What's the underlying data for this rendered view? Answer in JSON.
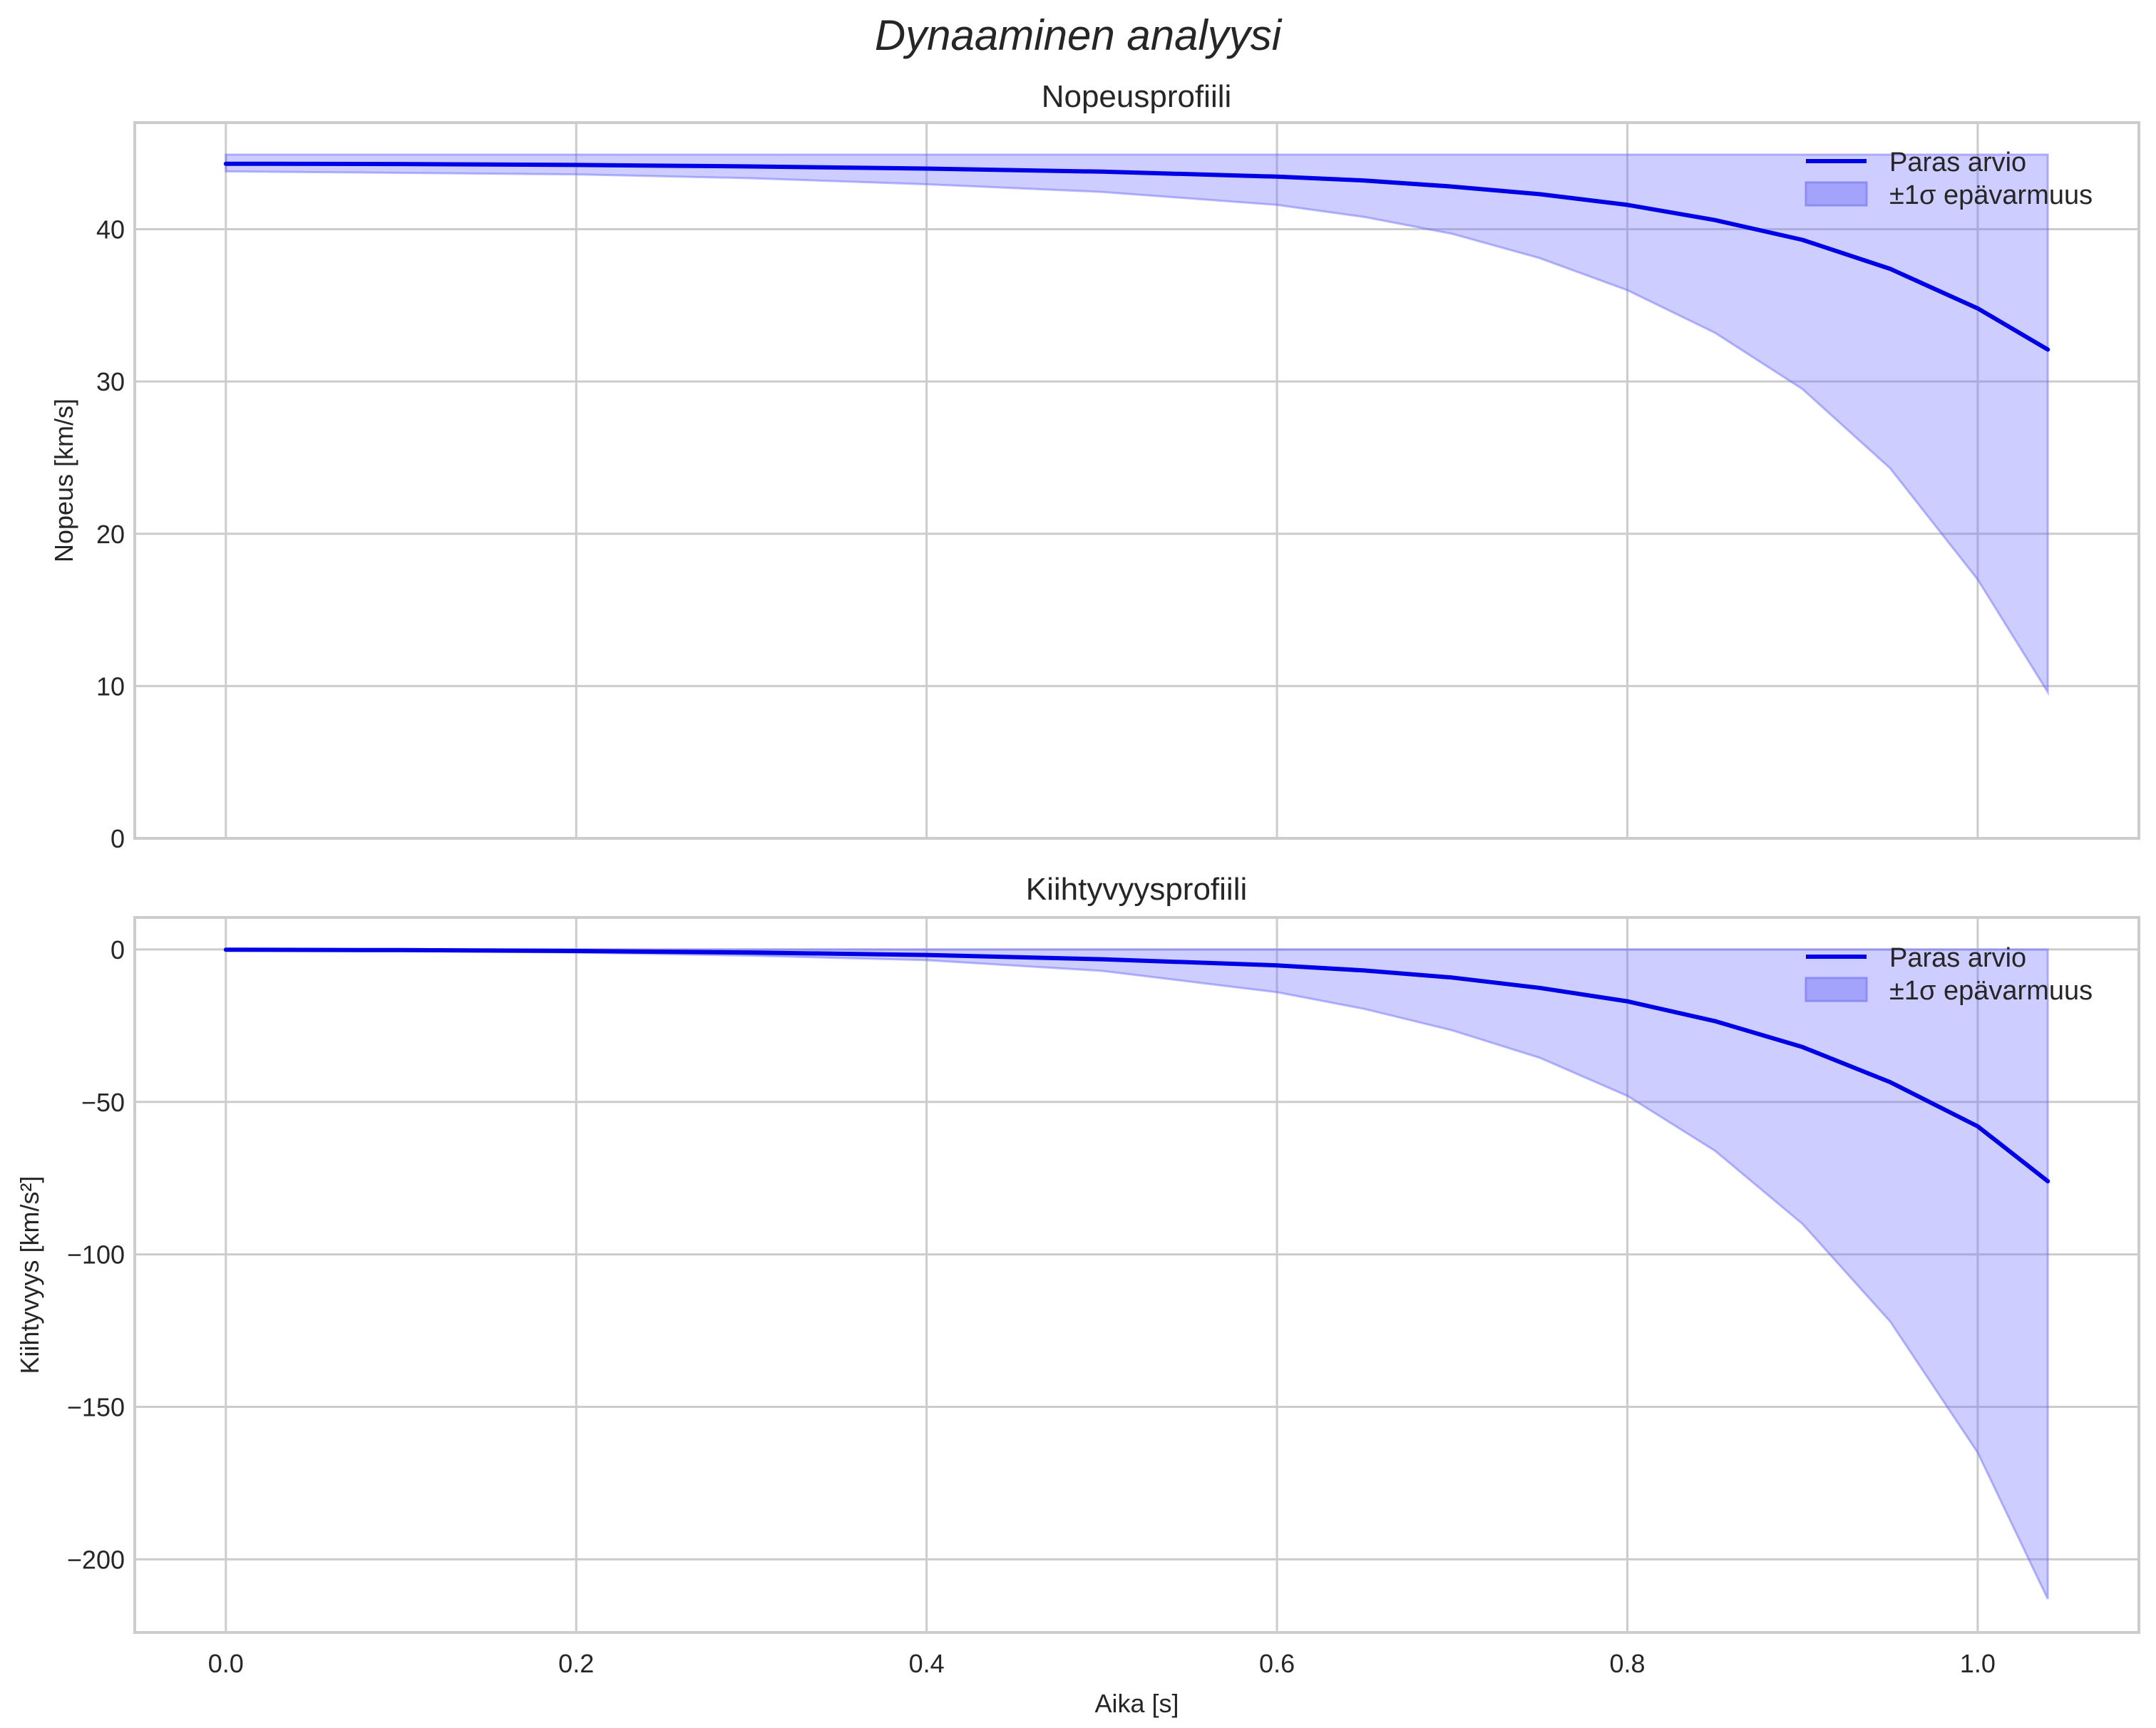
{
  "figure": {
    "title": "Dynaaminen analyysi"
  },
  "colors": {
    "line": "#0000e6",
    "band_fill": "#6666ff",
    "band_alpha": 0.33,
    "grid": "#cccccc",
    "spine": "#cccccc",
    "text": "#262626"
  },
  "chart_data": [
    {
      "type": "line",
      "title": "Nopeusprofiili",
      "xlabel": "",
      "ylabel": "Nopeus [km/s]",
      "xlim": [
        -0.052,
        1.092
      ],
      "ylim": [
        0,
        47
      ],
      "xticks": [
        0.0,
        0.2,
        0.4,
        0.6,
        0.8,
        1.0
      ],
      "xtick_labels": [
        "",
        "",
        "",
        "",
        "",
        ""
      ],
      "yticks": [
        0,
        10,
        20,
        30,
        40
      ],
      "ytick_labels": [
        "0",
        "10",
        "20",
        "30",
        "40"
      ],
      "grid": true,
      "legend_position": "upper right",
      "legend": [
        "Paras arvio",
        "±1σ epävarmuus"
      ],
      "x": [
        0.0,
        0.1,
        0.2,
        0.3,
        0.4,
        0.5,
        0.6,
        0.65,
        0.7,
        0.75,
        0.8,
        0.85,
        0.9,
        0.95,
        1.0,
        1.04
      ],
      "series": [
        {
          "name": "Paras arvio",
          "values": [
            44.3,
            44.28,
            44.22,
            44.12,
            43.98,
            43.78,
            43.45,
            43.2,
            42.8,
            42.3,
            41.6,
            40.6,
            39.3,
            37.4,
            34.8,
            32.1
          ]
        },
        {
          "name": "±1σ epävarmuus (lower)",
          "values": [
            43.8,
            43.7,
            43.6,
            43.35,
            42.95,
            42.45,
            41.6,
            40.8,
            39.7,
            38.1,
            36.0,
            33.2,
            29.5,
            24.3,
            17.0,
            9.6
          ]
        },
        {
          "name": "±1σ epävarmuus (upper)",
          "values": [
            44.9,
            44.9,
            44.9,
            44.9,
            44.9,
            44.9,
            44.9,
            44.9,
            44.9,
            44.9,
            44.9,
            44.9,
            44.9,
            44.9,
            44.9,
            44.9
          ]
        }
      ]
    },
    {
      "type": "line",
      "title": "Kiihtyvyysprofiili",
      "xlabel": "Aika [s]",
      "ylabel": "Kiihtyvyys [km/s²]",
      "xlim": [
        -0.052,
        1.092
      ],
      "ylim": [
        -224,
        10.5
      ],
      "xticks": [
        0.0,
        0.2,
        0.4,
        0.6,
        0.8,
        1.0
      ],
      "xtick_labels": [
        "0.0",
        "0.2",
        "0.4",
        "0.6",
        "0.8",
        "1.0"
      ],
      "yticks": [
        0,
        -50,
        -100,
        -150,
        -200
      ],
      "ytick_labels": [
        "0",
        "−50",
        "−100",
        "−150",
        "−200"
      ],
      "grid": true,
      "legend_position": "upper right",
      "legend": [
        "Paras arvio",
        "±1σ epävarmuus"
      ],
      "x": [
        0.0,
        0.1,
        0.2,
        0.3,
        0.4,
        0.5,
        0.6,
        0.65,
        0.7,
        0.75,
        0.8,
        0.85,
        0.9,
        0.95,
        1.0,
        1.04
      ],
      "series": [
        {
          "name": "Paras arvio",
          "values": [
            -0.1,
            -0.2,
            -0.5,
            -1.0,
            -1.8,
            -3.2,
            -5.2,
            -6.9,
            -9.2,
            -12.6,
            -17.0,
            -23.5,
            -32.0,
            -43.5,
            -58.0,
            -76.0
          ]
        },
        {
          "name": "±1σ epävarmuus (lower)",
          "values": [
            -0.2,
            -0.5,
            -1.0,
            -2.0,
            -3.5,
            -7.0,
            -14.0,
            -19.5,
            -26.5,
            -35.5,
            -48.0,
            -66.0,
            -90.0,
            -122.0,
            -165.0,
            -213.0
          ]
        },
        {
          "name": "±1σ epävarmuus (upper)",
          "values": [
            0,
            0,
            0,
            0,
            0,
            0,
            0,
            0,
            0,
            0,
            0,
            0,
            0,
            0,
            0,
            0
          ]
        }
      ]
    }
  ]
}
